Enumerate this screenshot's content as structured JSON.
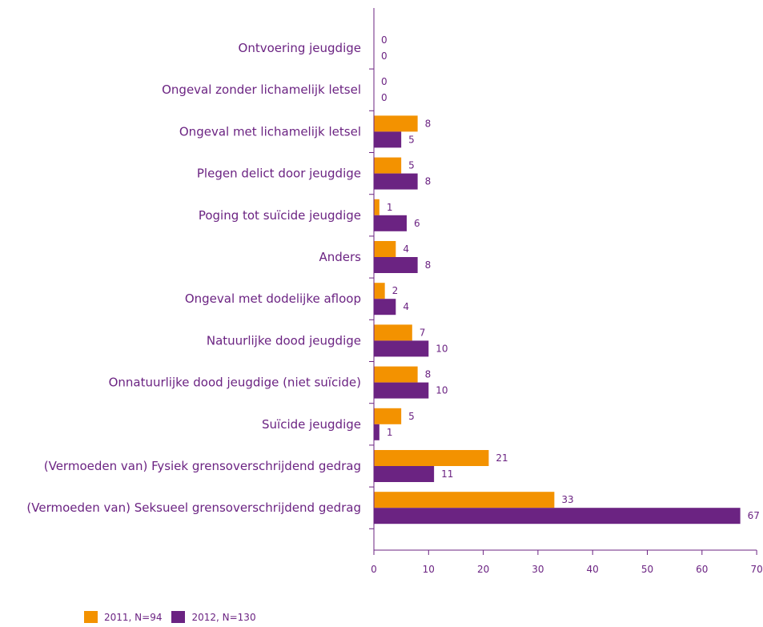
{
  "chart_data": {
    "type": "bar",
    "orientation": "horizontal",
    "categories": [
      "Ontvoering jeugdige",
      "Ongeval zonder lichamelijk letsel",
      "Ongeval met lichamelijk letsel",
      "Plegen delict door jeugdige",
      "Poging tot suïcide jeugdige",
      "Anders",
      "Ongeval met dodelijke afloop",
      "Natuurlijke dood jeugdige",
      "Onnatuurlijke dood jeugdige (niet suïcide)",
      "Suïcide jeugdige",
      "(Vermoeden van) Fysiek grensoverschrijdend gedrag",
      "(Vermoeden van) Seksueel grensoverschrijdend gedrag"
    ],
    "series": [
      {
        "name": "2011, N=94",
        "color": "#f39200",
        "values": [
          0,
          0,
          8,
          5,
          1,
          4,
          2,
          7,
          8,
          5,
          21,
          33
        ]
      },
      {
        "name": "2012, N=130",
        "color": "#6b2382",
        "values": [
          0,
          0,
          5,
          8,
          6,
          8,
          4,
          10,
          10,
          1,
          11,
          67
        ]
      }
    ],
    "xlim": [
      0,
      70
    ],
    "xticks": [
      0,
      10,
      20,
      30,
      40,
      50,
      60,
      70
    ],
    "grid": false,
    "legend_position": "bottom-left",
    "title": "",
    "xlabel": "",
    "ylabel": ""
  }
}
